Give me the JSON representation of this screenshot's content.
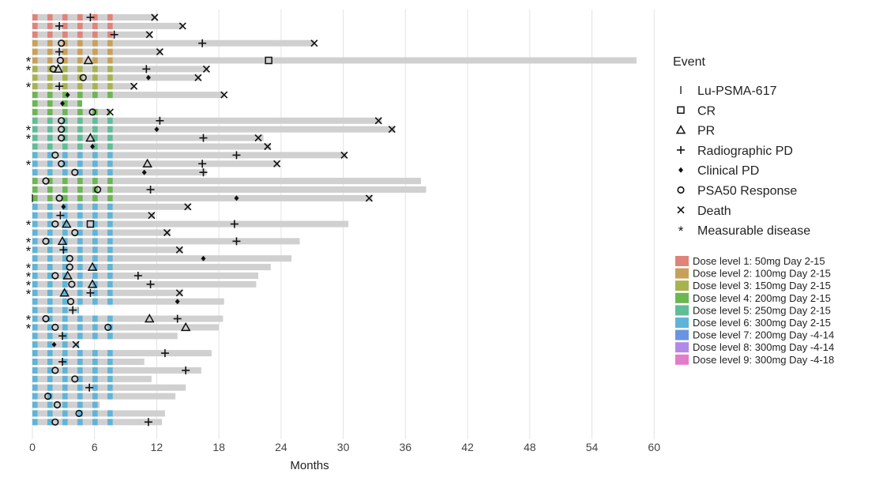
{
  "chart_data": {
    "type": "swimmer",
    "xlabel": "Months",
    "xlim": [
      0,
      60
    ],
    "xticks": [
      0,
      6,
      12,
      18,
      24,
      30,
      36,
      42,
      48,
      54,
      60
    ],
    "legend": {
      "title": "Event",
      "placement": "right",
      "events": [
        {
          "key": "lu",
          "symbol": "|",
          "label": "Lu-PSMA-617"
        },
        {
          "key": "cr",
          "symbol": "□",
          "label": "CR"
        },
        {
          "key": "pr",
          "symbol": "△",
          "label": "PR"
        },
        {
          "key": "rpd",
          "symbol": "+",
          "label": "Radiographic PD"
        },
        {
          "key": "cpd",
          "symbol": "◆",
          "label": "Clinical PD"
        },
        {
          "key": "psa",
          "symbol": "○",
          "label": "PSA50 Response"
        },
        {
          "key": "death",
          "symbol": "×",
          "label": "Death"
        },
        {
          "key": "meas",
          "symbol": "*",
          "label": "Measurable disease"
        }
      ],
      "dose_levels": [
        {
          "label": "Dose level 1: 50mg Day 2-15",
          "color": "#e0837a"
        },
        {
          "label": "Dose level 2: 100mg Day 2-15",
          "color": "#c9a05a"
        },
        {
          "label": "Dose level 3: 150mg Day 2-15",
          "color": "#a7b34f"
        },
        {
          "label": "Dose level 4: 200mg Day 2-15",
          "color": "#6cb654"
        },
        {
          "label": "Dose level 5: 250mg Day 2-15",
          "color": "#5fbd98"
        },
        {
          "label": "Dose level 6: 300mg Day 2-15",
          "color": "#5fb4d8"
        },
        {
          "label": "Dose level 7: 200mg Day -4-14",
          "color": "#6a94e2"
        },
        {
          "label": "Dose level 8: 300mg Day -4-14",
          "color": "#b28ae6"
        },
        {
          "label": "Dose level 9: 300mg Day -4-18",
          "color": "#e27ccb"
        }
      ]
    },
    "patients": [
      {
        "dose": 1,
        "len": 11.8,
        "events": [
          {
            "t": 5.6,
            "e": "rpd"
          },
          {
            "t": 11.8,
            "e": "death"
          }
        ]
      },
      {
        "dose": 1,
        "len": 14.5,
        "events": [
          {
            "t": 2.6,
            "e": "rpd"
          },
          {
            "t": 14.5,
            "e": "death"
          }
        ]
      },
      {
        "dose": 1,
        "len": 11.5,
        "events": [
          {
            "t": 7.9,
            "e": "rpd"
          },
          {
            "t": 11.3,
            "e": "death"
          }
        ]
      },
      {
        "dose": 2,
        "len": 27.2,
        "events": [
          {
            "t": 2.8,
            "e": "psa"
          },
          {
            "t": 16.4,
            "e": "rpd"
          },
          {
            "t": 27.2,
            "e": "death"
          }
        ]
      },
      {
        "dose": 2,
        "len": 12.5,
        "events": [
          {
            "t": 2.6,
            "e": "rpd"
          },
          {
            "t": 12.3,
            "e": "death"
          }
        ]
      },
      {
        "dose": 2,
        "len": 58.3,
        "meas": true,
        "events": [
          {
            "t": 2.7,
            "e": "psa"
          },
          {
            "t": 5.4,
            "e": "pr"
          },
          {
            "t": 22.8,
            "e": "cr"
          }
        ]
      },
      {
        "dose": 3,
        "len": 17.0,
        "meas": true,
        "events": [
          {
            "t": 2.0,
            "e": "psa"
          },
          {
            "t": 2.5,
            "e": "pr"
          },
          {
            "t": 11.0,
            "e": "rpd"
          },
          {
            "t": 16.8,
            "e": "death"
          }
        ]
      },
      {
        "dose": 3,
        "len": 16.2,
        "events": [
          {
            "t": 4.9,
            "e": "psa"
          },
          {
            "t": 11.2,
            "e": "cpd"
          },
          {
            "t": 16.0,
            "e": "death"
          }
        ]
      },
      {
        "dose": 3,
        "len": 9.8,
        "meas": true,
        "events": [
          {
            "t": 2.6,
            "e": "rpd"
          },
          {
            "t": 9.8,
            "e": "death"
          }
        ]
      },
      {
        "dose": 4,
        "len": 18.5,
        "events": [
          {
            "t": 3.4,
            "e": "cpd"
          },
          {
            "t": 18.5,
            "e": "death"
          }
        ]
      },
      {
        "dose": 4,
        "len": 4.8,
        "events": [
          {
            "t": 2.9,
            "e": "cpd"
          }
        ]
      },
      {
        "dose": 4,
        "len": 7.5,
        "events": [
          {
            "t": 5.8,
            "e": "psa"
          },
          {
            "t": 7.5,
            "e": "death"
          }
        ]
      },
      {
        "dose": 5,
        "len": 33.7,
        "events": [
          {
            "t": 2.8,
            "e": "psa"
          },
          {
            "t": 12.3,
            "e": "rpd"
          },
          {
            "t": 33.4,
            "e": "death"
          }
        ]
      },
      {
        "dose": 5,
        "len": 35.0,
        "meas": true,
        "events": [
          {
            "t": 2.8,
            "e": "psa"
          },
          {
            "t": 12.0,
            "e": "cpd"
          },
          {
            "t": 34.7,
            "e": "death"
          }
        ]
      },
      {
        "dose": 5,
        "len": 22.3,
        "meas": true,
        "events": [
          {
            "t": 2.8,
            "e": "psa"
          },
          {
            "t": 5.6,
            "e": "pr"
          },
          {
            "t": 16.5,
            "e": "rpd"
          },
          {
            "t": 21.8,
            "e": "death"
          }
        ]
      },
      {
        "dose": 5,
        "len": 23.0,
        "events": [
          {
            "t": 5.8,
            "e": "cpd"
          },
          {
            "t": 22.7,
            "e": "death"
          }
        ]
      },
      {
        "dose": 6,
        "len": 30.3,
        "events": [
          {
            "t": 2.2,
            "e": "psa"
          },
          {
            "t": 19.7,
            "e": "rpd"
          },
          {
            "t": 30.1,
            "e": "death"
          }
        ]
      },
      {
        "dose": 6,
        "len": 23.8,
        "meas": true,
        "events": [
          {
            "t": 2.8,
            "e": "psa"
          },
          {
            "t": 11.1,
            "e": "pr"
          },
          {
            "t": 16.4,
            "e": "rpd"
          },
          {
            "t": 23.6,
            "e": "death"
          }
        ]
      },
      {
        "dose": 6,
        "len": 16.8,
        "events": [
          {
            "t": 4.1,
            "e": "psa"
          },
          {
            "t": 10.8,
            "e": "cpd"
          },
          {
            "t": 16.5,
            "e": "rpd"
          }
        ]
      },
      {
        "dose": 4,
        "len": 37.5,
        "events": [
          {
            "t": 1.3,
            "e": "psa"
          }
        ]
      },
      {
        "dose": 4,
        "len": 38.0,
        "events": [
          {
            "t": 6.3,
            "e": "psa"
          },
          {
            "t": 11.4,
            "e": "rpd"
          }
        ]
      },
      {
        "dose": 4,
        "len": 32.8,
        "events": [
          {
            "t": 0.0,
            "e": "lu"
          },
          {
            "t": 2.6,
            "e": "psa"
          },
          {
            "t": 19.7,
            "e": "cpd"
          },
          {
            "t": 32.5,
            "e": "death"
          }
        ]
      },
      {
        "dose": 6,
        "len": 15.2,
        "events": [
          {
            "t": 3.0,
            "e": "cpd"
          },
          {
            "t": 15.0,
            "e": "death"
          }
        ]
      },
      {
        "dose": 6,
        "len": 11.8,
        "events": [
          {
            "t": 2.7,
            "e": "rpd"
          },
          {
            "t": 11.5,
            "e": "death"
          }
        ]
      },
      {
        "dose": 6,
        "len": 30.5,
        "meas": true,
        "events": [
          {
            "t": 2.2,
            "e": "psa"
          },
          {
            "t": 3.3,
            "e": "pr"
          },
          {
            "t": 5.6,
            "e": "cr"
          },
          {
            "t": 19.5,
            "e": "rpd"
          }
        ]
      },
      {
        "dose": 6,
        "len": 13.3,
        "events": [
          {
            "t": 4.1,
            "e": "psa"
          },
          {
            "t": 13.0,
            "e": "death"
          }
        ]
      },
      {
        "dose": 6,
        "len": 25.8,
        "meas": true,
        "events": [
          {
            "t": 1.3,
            "e": "psa"
          },
          {
            "t": 2.9,
            "e": "pr"
          },
          {
            "t": 19.7,
            "e": "rpd"
          }
        ]
      },
      {
        "dose": 6,
        "len": 14.5,
        "meas": true,
        "events": [
          {
            "t": 3.0,
            "e": "rpd"
          },
          {
            "t": 14.2,
            "e": "death"
          }
        ]
      },
      {
        "dose": 6,
        "len": 25.0,
        "events": [
          {
            "t": 3.6,
            "e": "psa"
          },
          {
            "t": 16.5,
            "e": "cpd"
          }
        ]
      },
      {
        "dose": 6,
        "len": 23.0,
        "meas": true,
        "events": [
          {
            "t": 3.6,
            "e": "psa"
          },
          {
            "t": 5.8,
            "e": "pr"
          }
        ]
      },
      {
        "dose": 6,
        "len": 21.8,
        "meas": true,
        "events": [
          {
            "t": 2.2,
            "e": "psa"
          },
          {
            "t": 3.4,
            "e": "pr"
          },
          {
            "t": 10.2,
            "e": "rpd"
          }
        ]
      },
      {
        "dose": 6,
        "len": 21.6,
        "meas": true,
        "events": [
          {
            "t": 3.8,
            "e": "psa"
          },
          {
            "t": 5.8,
            "e": "pr"
          },
          {
            "t": 11.4,
            "e": "rpd"
          }
        ]
      },
      {
        "dose": 6,
        "len": 14.5,
        "meas": true,
        "events": [
          {
            "t": 3.1,
            "e": "pr"
          },
          {
            "t": 5.6,
            "e": "rpd"
          },
          {
            "t": 14.2,
            "e": "death"
          }
        ]
      },
      {
        "dose": 6,
        "len": 18.5,
        "events": [
          {
            "t": 3.7,
            "e": "psa"
          },
          {
            "t": 14.0,
            "e": "cpd"
          }
        ]
      },
      {
        "dose": 6,
        "len": 4.5,
        "events": [
          {
            "t": 3.9,
            "e": "rpd"
          }
        ]
      },
      {
        "dose": 6,
        "len": 18.4,
        "meas": true,
        "events": [
          {
            "t": 1.3,
            "e": "psa"
          },
          {
            "t": 11.3,
            "e": "pr"
          },
          {
            "t": 14.0,
            "e": "rpd"
          }
        ]
      },
      {
        "dose": 6,
        "len": 18.0,
        "meas": true,
        "events": [
          {
            "t": 2.2,
            "e": "psa"
          },
          {
            "t": 7.3,
            "e": "psa"
          },
          {
            "t": 14.8,
            "e": "pr"
          }
        ]
      },
      {
        "dose": 6,
        "len": 14.0,
        "events": [
          {
            "t": 2.9,
            "e": "rpd"
          }
        ]
      },
      {
        "dose": 6,
        "len": 4.5,
        "events": [
          {
            "t": 2.1,
            "e": "cpd"
          },
          {
            "t": 4.2,
            "e": "death"
          }
        ]
      },
      {
        "dose": 6,
        "len": 17.3,
        "events": [
          {
            "t": 12.8,
            "e": "rpd"
          }
        ]
      },
      {
        "dose": 6,
        "len": 10.8,
        "events": [
          {
            "t": 2.9,
            "e": "rpd"
          }
        ]
      },
      {
        "dose": 6,
        "len": 16.3,
        "events": [
          {
            "t": 2.2,
            "e": "psa"
          },
          {
            "t": 14.8,
            "e": "rpd"
          }
        ]
      },
      {
        "dose": 6,
        "len": 11.5,
        "events": [
          {
            "t": 4.1,
            "e": "psa"
          }
        ]
      },
      {
        "dose": 6,
        "len": 14.8,
        "events": [
          {
            "t": 5.5,
            "e": "rpd"
          }
        ]
      },
      {
        "dose": 6,
        "len": 13.8,
        "events": [
          {
            "t": 1.5,
            "e": "psa"
          }
        ]
      },
      {
        "dose": 6,
        "len": 6.5,
        "events": [
          {
            "t": 2.4,
            "e": "psa"
          }
        ]
      },
      {
        "dose": 6,
        "len": 12.8,
        "events": [
          {
            "t": 4.5,
            "e": "psa"
          }
        ]
      },
      {
        "dose": 6,
        "len": 12.5,
        "events": [
          {
            "t": 2.2,
            "e": "psa"
          },
          {
            "t": 11.2,
            "e": "rpd"
          }
        ]
      }
    ]
  }
}
